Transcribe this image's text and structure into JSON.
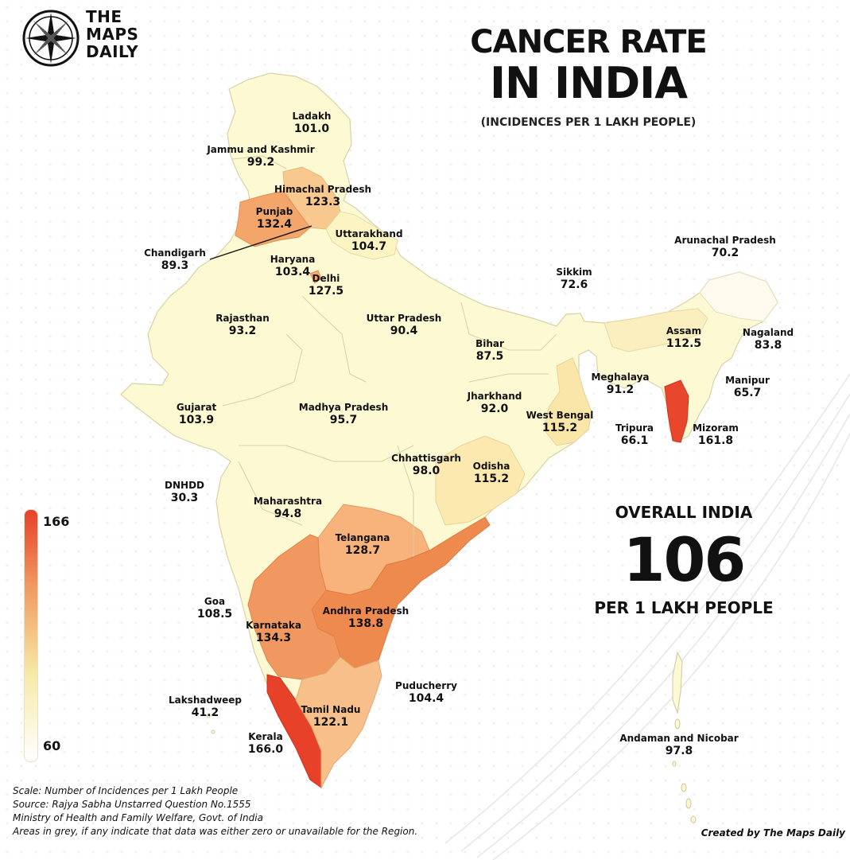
{
  "logo": {
    "line1": "THE",
    "line2": "MAPS",
    "line3": "DAILY",
    "icon": "compass-icon"
  },
  "title": {
    "line1": "CANCER RATE",
    "line2": "IN INDIA"
  },
  "subtitle": "(INCIDENCES PER 1 LAKH PEOPLE)",
  "overall": {
    "heading": "OVERALL INDIA",
    "value": "106",
    "unit": "PER 1 LAKH PEOPLE"
  },
  "legend": {
    "max": "166",
    "min": "60",
    "colors": [
      "#e8412a",
      "#f0985f",
      "#f7e9a6",
      "#ffffff"
    ]
  },
  "regions": [
    {
      "name": "Ladakh",
      "value": "101.0"
    },
    {
      "name": "Jammu and Kashmir",
      "value": "99.2"
    },
    {
      "name": "Himachal Pradesh",
      "value": "123.3"
    },
    {
      "name": "Punjab",
      "value": "132.4"
    },
    {
      "name": "Uttarakhand",
      "value": "104.7"
    },
    {
      "name": "Chandigarh",
      "value": "89.3"
    },
    {
      "name": "Haryana",
      "value": "103.4"
    },
    {
      "name": "Delhi",
      "value": "127.5"
    },
    {
      "name": "Rajasthan",
      "value": "93.2"
    },
    {
      "name": "Uttar Pradesh",
      "value": "90.4"
    },
    {
      "name": "Bihar",
      "value": "87.5"
    },
    {
      "name": "Sikkim",
      "value": "72.6"
    },
    {
      "name": "Arunachal Pradesh",
      "value": "70.2"
    },
    {
      "name": "Assam",
      "value": "112.5"
    },
    {
      "name": "Nagaland",
      "value": "83.8"
    },
    {
      "name": "Meghalaya",
      "value": "91.2"
    },
    {
      "name": "Manipur",
      "value": "65.7"
    },
    {
      "name": "Tripura",
      "value": "66.1"
    },
    {
      "name": "Mizoram",
      "value": "161.8"
    },
    {
      "name": "Gujarat",
      "value": "103.9"
    },
    {
      "name": "Madhya Pradesh",
      "value": "95.7"
    },
    {
      "name": "Jharkhand",
      "value": "92.0"
    },
    {
      "name": "West Bengal",
      "value": "115.2"
    },
    {
      "name": "Chhattisgarh",
      "value": "98.0"
    },
    {
      "name": "Odisha",
      "value": "115.2"
    },
    {
      "name": "DNHDD",
      "value": "30.3"
    },
    {
      "name": "Maharashtra",
      "value": "94.8"
    },
    {
      "name": "Telangana",
      "value": "128.7"
    },
    {
      "name": "Goa",
      "value": "108.5"
    },
    {
      "name": "Karnataka",
      "value": "134.3"
    },
    {
      "name": "Andhra Pradesh",
      "value": "138.8"
    },
    {
      "name": "Puducherry",
      "value": "104.4"
    },
    {
      "name": "Lakshadweep",
      "value": "41.2"
    },
    {
      "name": "Tamil Nadu",
      "value": "122.1"
    },
    {
      "name": "Kerala",
      "value": "166.0"
    },
    {
      "name": "Andaman and Nicobar",
      "value": "97.8"
    }
  ],
  "notes": {
    "scale": "Scale: Number of Incidences per 1 Lakh People",
    "source": "Source: Rajya Sabha Unstarred Question No.1555",
    "ministry": "Ministry of Health and Family Welfare, Govt. of India",
    "grey": "Areas in grey, if any indicate that data was either zero or unavailable for the Region."
  },
  "credit": "Created by The Maps Daily"
}
